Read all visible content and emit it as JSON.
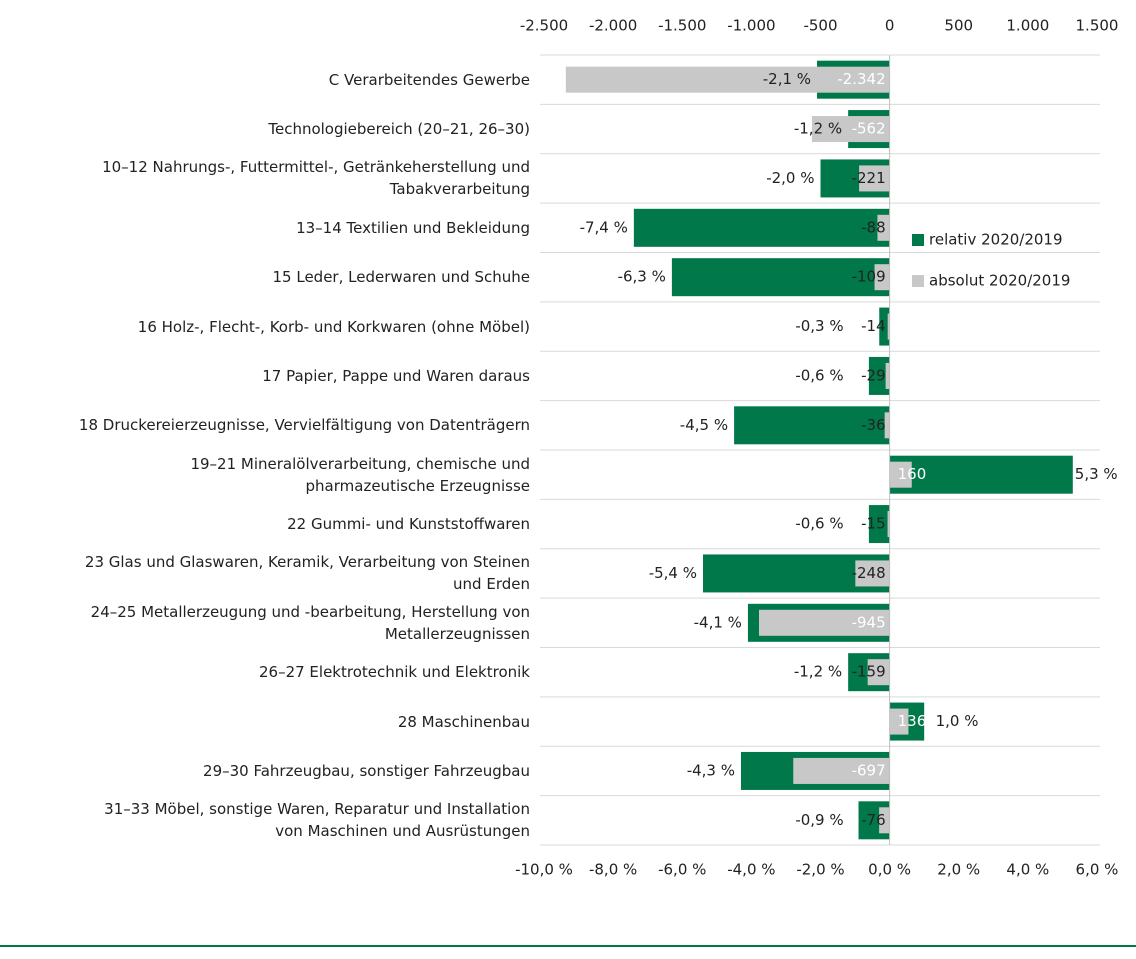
{
  "chart_data": {
    "type": "bar",
    "orientation": "horizontal",
    "categories": [
      "C Verarbeitendes Gewerbe",
      "Technologiebereich (20–21, 26–30)",
      "10–12 Nahrungs-, Futtermittel-, Getränkeherstellung und\nTabakverarbeitung",
      "13–14 Textilien und Bekleidung",
      "15 Leder, Lederwaren und Schuhe",
      "16 Holz-, Flecht-, Korb- und Korkwaren (ohne Möbel)",
      "17 Papier, Pappe und Waren daraus",
      "18 Druckereierzeugnisse, Vervielfältigung von Datenträgern",
      "19–21 Mineralölverarbeitung, chemische und\npharmazeutische Erzeugnisse",
      "22 Gummi- und Kunststoffwaren",
      "23 Glas und Glaswaren, Keramik, Verarbeitung von Steinen\nund Erden",
      "24–25 Metallerzeugung und -bearbeitung, Herstellung von\nMetallerzeugnissen",
      "26–27 Elektrotechnik und Elektronik",
      "28 Maschinenbau",
      "29–30 Fahrzeugbau, sonstiger Fahrzeugbau",
      "31–33 Möbel, sonstige Waren, Reparatur und Installation\nvon Maschinen und Ausrüstungen"
    ],
    "series": [
      {
        "name": "relativ 2020/2019",
        "color": "#00784a",
        "axis": "x",
        "values": [
          -2.1,
          -1.2,
          -2.0,
          -7.4,
          -6.3,
          -0.3,
          -0.6,
          -4.5,
          5.3,
          -0.6,
          -5.4,
          -4.1,
          -1.2,
          1.0,
          -4.3,
          -0.9
        ],
        "value_labels": [
          "-2,1 %",
          "-1,2 %",
          "-2,0 %",
          "-7,4 %",
          "-6,3 %",
          "-0,3 %",
          "-0,6 %",
          "-4,5 %",
          "5,3 %",
          "-0,6 %",
          "-5,4 %",
          "-4,1 %",
          "-1,2 %",
          "1,0 %",
          "-4,3 %",
          "-0,9 %"
        ]
      },
      {
        "name": "absolut 2020/2019",
        "color": "#c8c8c8",
        "axis": "x2",
        "values": [
          -2342,
          -562,
          -221,
          -88,
          -109,
          -14,
          -29,
          -36,
          160,
          -15,
          -248,
          -945,
          -159,
          136,
          -697,
          -76
        ],
        "value_labels": [
          "-2.342",
          "-562",
          "-221",
          "-88",
          "-109",
          "-14",
          "-29",
          "-36",
          "160",
          "-15",
          "-248",
          "-945",
          "-159",
          "136",
          "-697",
          "-76"
        ]
      }
    ],
    "xlim": [
      -10,
      6
    ],
    "xticks": [
      {
        "value": -10,
        "label": "-10,0 %"
      },
      {
        "value": -8,
        "label": "-8,0 %"
      },
      {
        "value": -6,
        "label": "-6,0 %"
      },
      {
        "value": -4,
        "label": "-4,0 %"
      },
      {
        "value": -2,
        "label": "-2,0 %"
      },
      {
        "value": 0,
        "label": "0,0 %"
      },
      {
        "value": 2,
        "label": "2,0 %"
      },
      {
        "value": 4,
        "label": "4,0 %"
      },
      {
        "value": 6,
        "label": "6,0 %"
      }
    ],
    "x2lim": [
      -2500,
      1500
    ],
    "x2ticks": [
      {
        "value": -2500,
        "label": "-2.500"
      },
      {
        "value": -2000,
        "label": "-2.000"
      },
      {
        "value": -1500,
        "label": "-1.500"
      },
      {
        "value": -1000,
        "label": "-1.000"
      },
      -500,
      0,
      500,
      {
        "value": 1000,
        "label": "1.000"
      },
      {
        "value": 1500,
        "label": "1.500"
      }
    ],
    "legend": "right"
  }
}
